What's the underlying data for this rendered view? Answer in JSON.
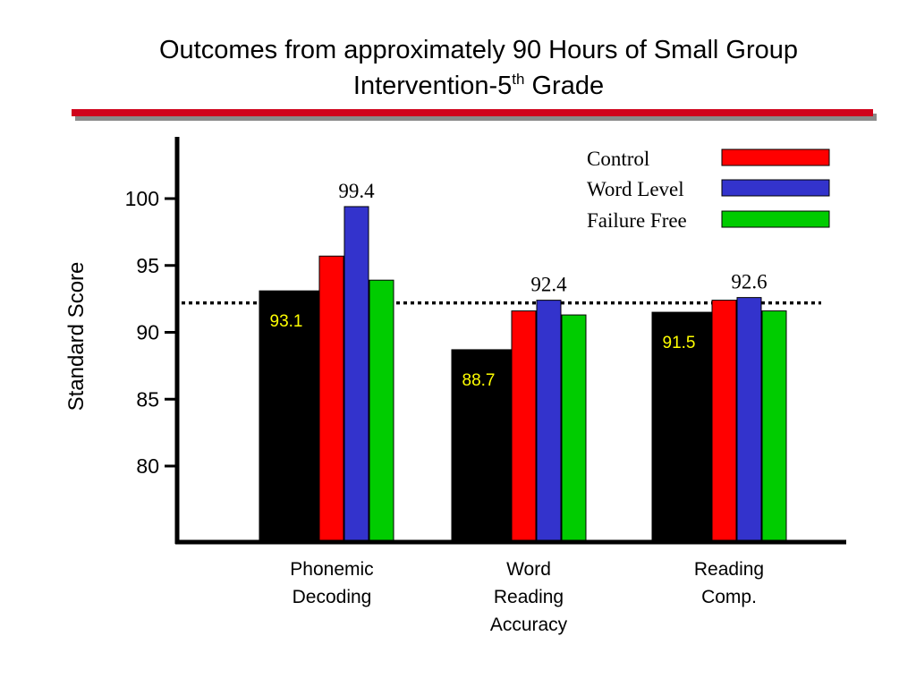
{
  "title": {
    "line1": "Outcomes from approximately 90 Hours of Small Group",
    "line2_main": "Intervention-5",
    "line2_sup": "th",
    "line2_end": " Grade"
  },
  "colors": {
    "baseline": "#000000",
    "control": "#ff0000",
    "word_level": "#3333cc",
    "failure_free": "#00cc00",
    "title_rule": "#d0021b",
    "inbar_label": "#ffff00"
  },
  "chart_data": {
    "type": "bar",
    "title": "Outcomes from approximately 90 Hours of Small Group Intervention-5th Grade",
    "ylabel": "Standard Score",
    "xlabel": "",
    "yticks": [
      80,
      85,
      90,
      95,
      100
    ],
    "ylim": [
      74.5,
      104
    ],
    "reference_line": 92.2,
    "categories": [
      [
        "Phonemic",
        "Decoding"
      ],
      [
        "Word",
        "Reading",
        "Accuracy"
      ],
      [
        "Reading",
        "Comp."
      ]
    ],
    "baseline": {
      "values": [
        93.1,
        88.7,
        91.5
      ],
      "labels": [
        "93.1",
        "88.7",
        "91.5"
      ]
    },
    "series": [
      {
        "name": "Control",
        "values": [
          95.7,
          91.6,
          92.4
        ],
        "color": "#ff0000"
      },
      {
        "name": "Word Level",
        "values": [
          99.4,
          92.4,
          92.6
        ],
        "color": "#3333cc"
      },
      {
        "name": "Failure Free",
        "values": [
          93.9,
          91.3,
          91.6
        ],
        "color": "#00cc00"
      }
    ],
    "value_labels": [
      "99.4",
      "92.4",
      "92.6"
    ],
    "legend": {
      "placement": "top-right",
      "entries": [
        "Control",
        "Word Level",
        "Failure Free"
      ]
    },
    "grid": false
  }
}
